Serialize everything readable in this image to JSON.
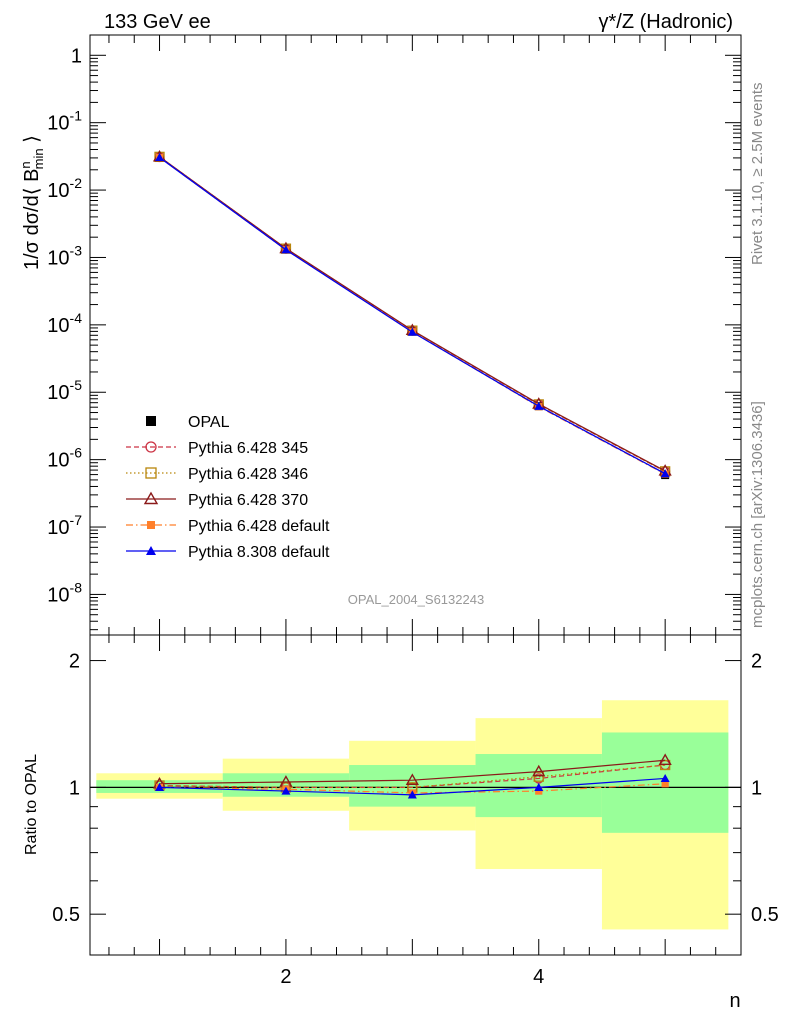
{
  "header": {
    "left": "133 GeV ee",
    "right_main": "γ*/Z",
    "right_suffix": " (Hadronic)"
  },
  "side_text": {
    "rivet": "Rivet 3.1.10, ≥ 2.5M events",
    "mcplots": "mcplots.cern.ch [arXiv:1306.3436]"
  },
  "watermark": "OPAL_2004_S6132243",
  "colors": {
    "opal": "#000000",
    "p345": "#cc3344",
    "p346": "#b8860b",
    "p370": "#8b1a1a",
    "p6def": "#ff7f2a",
    "p8def": "#0000ee",
    "band_inner": "#99ff99",
    "band_outer": "#ffff99"
  },
  "chart_data": [
    {
      "type": "line",
      "title": "",
      "ylabel": "1/σ dσ/d⟨ B^n_min ⟩",
      "xlabel": "",
      "yscale": "log",
      "ylim": [
        2.5e-09,
        2
      ],
      "xlim": [
        0.45,
        5.6
      ],
      "grid": false,
      "legend_position": "bottom-left",
      "y_tick_labels": [
        "1",
        "10^-1",
        "10^-2",
        "10^-3",
        "10^-4",
        "10^-5",
        "10^-6",
        "10^-7",
        "10^-8"
      ],
      "x": [
        1,
        2,
        3,
        4,
        5
      ],
      "series": [
        {
          "name": "OPAL",
          "marker": "square",
          "values": [
            0.0305,
            0.00132,
            8e-05,
            6.2e-06,
            5.9e-07
          ]
        },
        {
          "name": "Pythia 6.428 345",
          "marker": "circle-open",
          "line": "dashed",
          "values": [
            0.031,
            0.00135,
            8.2e-05,
            6.6e-06,
            6.7e-07
          ]
        },
        {
          "name": "Pythia 6.428 346",
          "marker": "square-open",
          "line": "dotted",
          "values": [
            0.0311,
            0.00135,
            8.2e-05,
            6.6e-06,
            6.7e-07
          ]
        },
        {
          "name": "Pythia 6.428 370",
          "marker": "triangle-open",
          "line": "solid",
          "values": [
            0.0312,
            0.00136,
            8.3e-05,
            6.7e-06,
            6.8e-07
          ]
        },
        {
          "name": "Pythia 6.428 default",
          "marker": "square-filled",
          "line": "dashdot",
          "values": [
            0.0305,
            0.0013,
            7.9e-05,
            6.1e-06,
            6.1e-07
          ]
        },
        {
          "name": "Pythia 8.308 default",
          "marker": "triangle-filled",
          "line": "solid",
          "values": [
            0.0305,
            0.0013,
            7.8e-05,
            6.2e-06,
            6.2e-07
          ]
        }
      ]
    },
    {
      "type": "line",
      "title": "",
      "ylabel": "Ratio to OPAL",
      "xlabel": "n",
      "yscale": "log",
      "ylim": [
        0.4,
        2.3
      ],
      "xlim": [
        0.45,
        5.6
      ],
      "y_tick_labels": [
        "0.5",
        "1",
        "2"
      ],
      "x_tick_labels": [
        "2",
        "4"
      ],
      "x": [
        1,
        2,
        3,
        4,
        5
      ],
      "bands": [
        {
          "xlo": 0.5,
          "xhi": 1.5,
          "inner": [
            0.97,
            1.04
          ],
          "outer": [
            0.94,
            1.08
          ]
        },
        {
          "xlo": 1.5,
          "xhi": 2.5,
          "inner": [
            0.95,
            1.08
          ],
          "outer": [
            0.88,
            1.17
          ]
        },
        {
          "xlo": 2.5,
          "xhi": 3.5,
          "inner": [
            0.9,
            1.13
          ],
          "outer": [
            0.79,
            1.29
          ]
        },
        {
          "xlo": 3.5,
          "xhi": 4.5,
          "inner": [
            0.85,
            1.2
          ],
          "outer": [
            0.64,
            1.46
          ]
        },
        {
          "xlo": 4.5,
          "xhi": 5.5,
          "inner": [
            0.78,
            1.35
          ],
          "outer": [
            0.46,
            1.61
          ]
        }
      ],
      "series": [
        {
          "name": "Pythia 6.428 345",
          "values": [
            1.01,
            1.0,
            1.0,
            1.05,
            1.13
          ]
        },
        {
          "name": "Pythia 6.428 346",
          "values": [
            1.01,
            1.0,
            1.0,
            1.06,
            1.13
          ]
        },
        {
          "name": "Pythia 6.428 370",
          "values": [
            1.02,
            1.03,
            1.04,
            1.09,
            1.16
          ]
        },
        {
          "name": "Pythia 6.428 default",
          "values": [
            1.0,
            0.99,
            0.97,
            0.98,
            1.02
          ]
        },
        {
          "name": "Pythia 8.308 default",
          "values": [
            1.0,
            0.98,
            0.96,
            1.0,
            1.05
          ]
        }
      ]
    }
  ]
}
